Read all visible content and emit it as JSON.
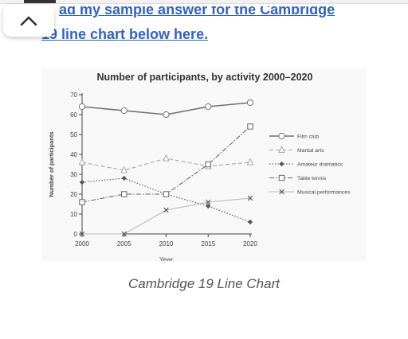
{
  "link": {
    "line1": "ad my sample answer for the Cambridge",
    "line2": "19 line chart below here."
  },
  "caption": "Cambridge 19 Line Chart",
  "icons": {
    "back": "chevron-up-icon"
  },
  "colors": {
    "link": "#2f62c9",
    "caption": "#555555"
  },
  "chart_data": {
    "type": "line",
    "title": "Number of participants, by activity 2000–2020",
    "xlabel": "Year",
    "ylabel": "Number of participants",
    "x": [
      2000,
      2005,
      2010,
      2015,
      2020
    ],
    "xticks": [
      "2000",
      "2005",
      "2010",
      "2015",
      "2020"
    ],
    "yticks": [
      "0",
      "10",
      "20",
      "30",
      "40",
      "50",
      "60",
      "70"
    ],
    "ylim": [
      0,
      70
    ],
    "grid": false,
    "legend_position": "right",
    "series": [
      {
        "name": "Film club",
        "values": [
          64,
          62,
          60,
          64,
          66
        ],
        "marker": "circle",
        "dash": "solid",
        "color": "#707070"
      },
      {
        "name": "Martial arts",
        "values": [
          36,
          32,
          38,
          34,
          36
        ],
        "marker": "triangle",
        "dash": "dashed",
        "color": "#a8a8a8"
      },
      {
        "name": "Amateur dramatics",
        "values": [
          26,
          28,
          20,
          14,
          6
        ],
        "marker": "diamond",
        "dash": "dotted",
        "color": "#555555"
      },
      {
        "name": "Table tennis",
        "values": [
          16,
          20,
          20,
          35,
          54
        ],
        "marker": "square",
        "dash": "dashdot",
        "color": "#666666"
      },
      {
        "name": "Musical performances",
        "values": [
          0,
          0,
          12,
          16,
          18
        ],
        "marker": "x",
        "dash": "solid",
        "color": "#b8b8b8"
      }
    ]
  }
}
